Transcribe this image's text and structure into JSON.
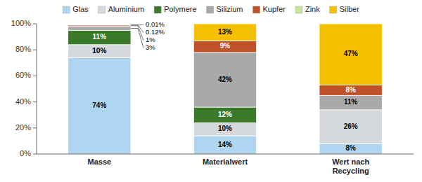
{
  "chart_data": {
    "type": "bar",
    "stacked": true,
    "categories": [
      "Masse",
      "Materialwert",
      "Wert nach\nRecycling"
    ],
    "series": [
      {
        "name": "Glas",
        "color": "#aed6f1",
        "values": [
          74,
          14,
          8
        ],
        "value_labels": [
          "74%",
          "14%",
          "8%"
        ]
      },
      {
        "name": "Aluminium",
        "color": "#d5d8dc",
        "values": [
          10,
          10,
          26
        ],
        "value_labels": [
          "10%",
          "10%",
          "26%"
        ]
      },
      {
        "name": "Polymere",
        "color": "#3a7a2a",
        "values": [
          11,
          12,
          0
        ],
        "value_labels": [
          "11%",
          "12%",
          null
        ]
      },
      {
        "name": "Silizium",
        "color": "#a9a9a9",
        "values": [
          3,
          42,
          11
        ],
        "value_labels": [
          "3%",
          "42%",
          "11%"
        ]
      },
      {
        "name": "Kupfer",
        "color": "#c0522a",
        "values": [
          1,
          9,
          8
        ],
        "value_labels": [
          "1%",
          "9%",
          "8%"
        ]
      },
      {
        "name": "Zink",
        "color": "#c8e6a0",
        "values": [
          0.12,
          0,
          0
        ],
        "value_labels": [
          "0.12%",
          null,
          null
        ]
      },
      {
        "name": "Silber",
        "color": "#f5c000",
        "values": [
          0.01,
          13,
          47
        ],
        "value_labels": [
          "0.01%",
          "13%",
          "47%"
        ]
      }
    ],
    "ylim": [
      0,
      100
    ],
    "yticks": [
      {
        "value": 0,
        "label": "0%"
      },
      {
        "value": 20,
        "label": "20%"
      },
      {
        "value": 40,
        "label": "40%"
      },
      {
        "value": 60,
        "label": "60%"
      },
      {
        "value": 80,
        "label": "80%"
      },
      {
        "value": 100,
        "label": "100%"
      }
    ],
    "grid": false,
    "legend": "top",
    "data_labels": true
  }
}
